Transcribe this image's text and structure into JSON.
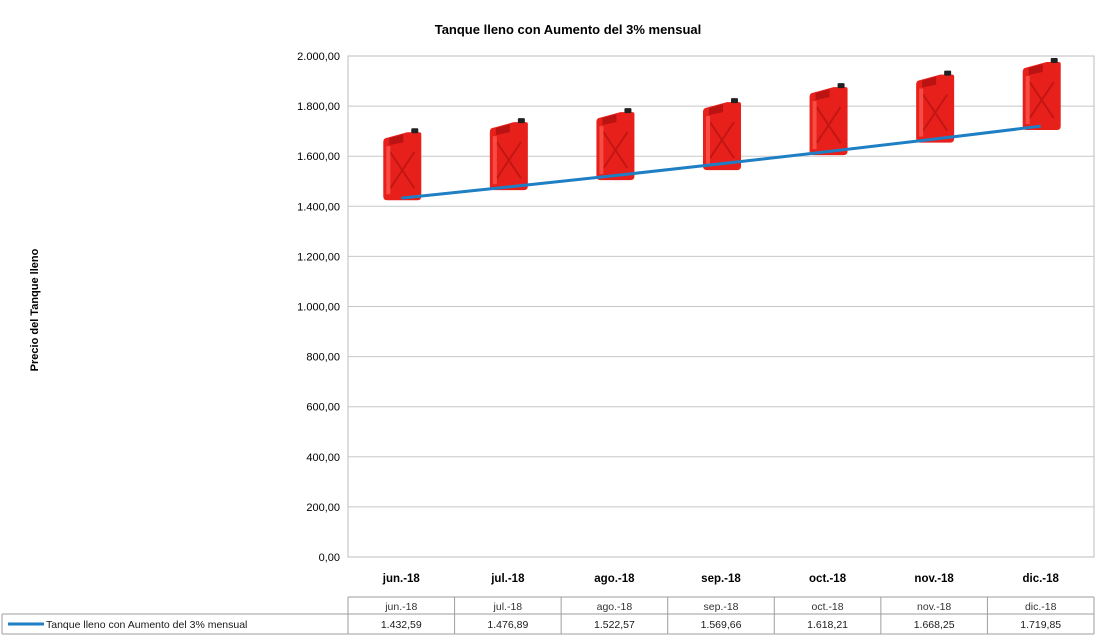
{
  "chart_data": {
    "type": "line",
    "title": "Tanque lleno con Aumento del 3% mensual",
    "ylabel": "Precio del Tanque lleno",
    "xlabel": "",
    "categories": [
      "jun.-18",
      "jul.-18",
      "ago.-18",
      "sep.-18",
      "oct.-18",
      "nov.-18",
      "dic.-18"
    ],
    "y_tick_labels": [
      "0,00",
      "200,00",
      "400,00",
      "600,00",
      "800,00",
      "1.000,00",
      "1.200,00",
      "1.400,00",
      "1.600,00",
      "1.800,00",
      "2.000,00"
    ],
    "ylim": [
      0,
      2000
    ],
    "grid": true,
    "legend_placement": "data-table-left",
    "series": [
      {
        "name": "Tanque lleno con Aumento del 3% mensual",
        "color": "#1f7fc4",
        "values": [
          1432.59,
          1476.89,
          1522.57,
          1569.66,
          1618.21,
          1668.25,
          1719.85
        ],
        "value_labels": [
          "1.432,59",
          "1.476,89",
          "1.522,57",
          "1.569,66",
          "1.618,21",
          "1.668,25",
          "1.719,85"
        ]
      }
    ],
    "decoration": {
      "icon": "red-jerrycan-icon",
      "icon_color": "#e8201c",
      "icon_levels": [
        1600,
        1640,
        1680,
        1720,
        1780,
        1830,
        1880
      ]
    }
  }
}
